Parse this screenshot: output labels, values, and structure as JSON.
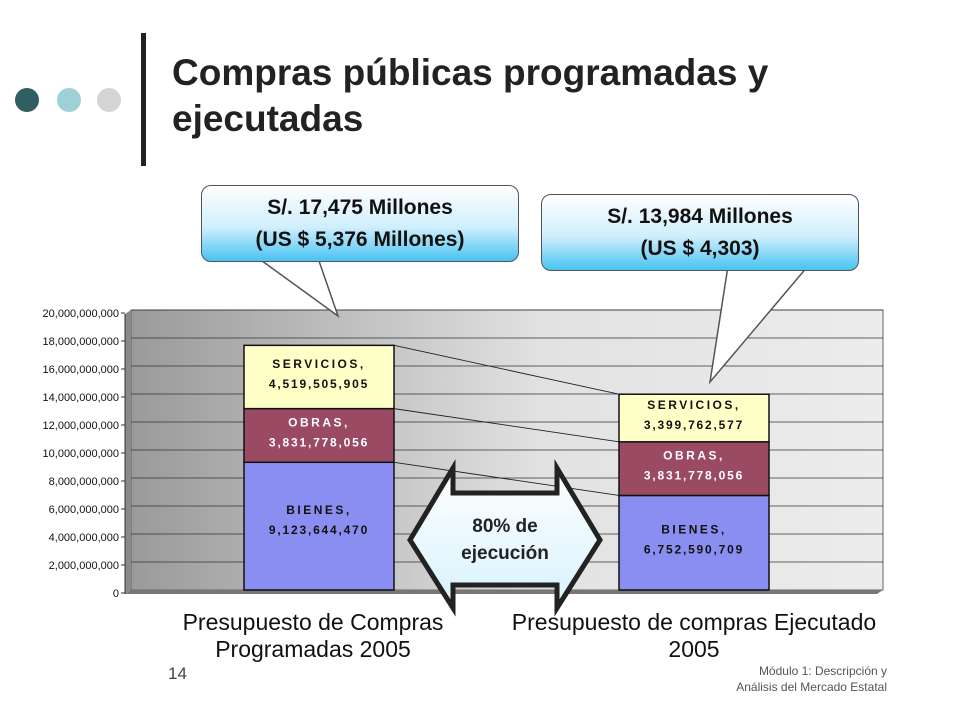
{
  "slide": {
    "title": "Compras públicas programadas y ejecutadas",
    "page_number": "14",
    "footer_line1": "Módulo 1: Descripción y",
    "footer_line2": "Análisis del Mercado Estatal"
  },
  "callouts": {
    "left_line1": "S/. 17,475 Millones",
    "left_line2": "(US $  5,376 Millones)",
    "right_line1": "S/. 13,984 Millones",
    "right_line2": "(US $ 4,303)"
  },
  "arrow_label_line1": "80% de",
  "arrow_label_line2": "ejecución",
  "colors": {
    "bienes": "#8a8ef0",
    "obras": "#9b4a63",
    "servicios": "#ffffc8",
    "dot_dark": "#2f5f63",
    "dot_mid": "#9ed0d6",
    "dot_light": "#d4d4d4"
  },
  "chart_data": {
    "type": "bar",
    "stacked": true,
    "categories": [
      [
        "Presupuesto de Compras",
        "Programadas 2005"
      ],
      [
        "Presupuesto de compras Ejecutado",
        "2005"
      ]
    ],
    "series": [
      {
        "name": "BIENES",
        "values": [
          9123644470,
          6752590709
        ],
        "labels": [
          "9,123,644,470",
          "6,752,590,709"
        ]
      },
      {
        "name": "OBRAS",
        "values": [
          3831778056,
          3831778056
        ],
        "labels": [
          "3,831,778,056",
          "3,831,778,056"
        ]
      },
      {
        "name": "SERVICIOS",
        "values": [
          4519505905,
          3399762577
        ],
        "labels": [
          "4,519,505,905",
          "3,399,762,577"
        ]
      }
    ],
    "ylim": [
      0,
      20000000000
    ],
    "yticks": [
      0,
      2000000000,
      4000000000,
      6000000000,
      8000000000,
      10000000000,
      12000000000,
      14000000000,
      16000000000,
      18000000000,
      20000000000
    ],
    "ytick_labels": [
      "0",
      "2,000,000,000",
      "4,000,000,000",
      "6,000,000,000",
      "8,000,000,000",
      "10,000,000,000",
      "12,000,000,000",
      "14,000,000,000",
      "16,000,000,000",
      "18,000,000,000",
      "20,000,000,000"
    ],
    "grid": true,
    "xlabel": "",
    "ylabel": ""
  }
}
